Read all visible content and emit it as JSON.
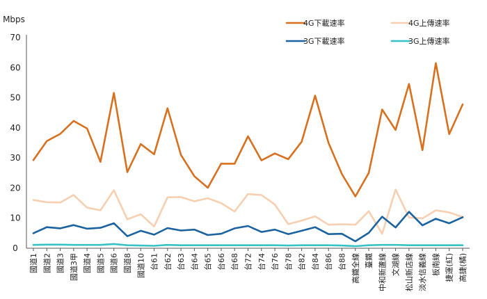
{
  "chart_data": {
    "type": "line",
    "ylabel": "Mbps",
    "ylim": [
      0,
      70
    ],
    "yticks": [
      0,
      10,
      20,
      30,
      40,
      50,
      60,
      70
    ],
    "grid": false,
    "legend_position": "top-right",
    "categories": [
      "國道1",
      "國道2",
      "國道3",
      "國道3甲",
      "國道4",
      "國道5",
      "國道6",
      "國道8",
      "國道10",
      "台61",
      "台62",
      "台63",
      "台64",
      "台65",
      "台66",
      "台68",
      "台72",
      "台74",
      "台76",
      "台78",
      "台82",
      "台84",
      "台86",
      "台88",
      "高鐵全線",
      "臺鐵",
      "中和新蘆線",
      "文湖線",
      "松山新店線",
      "淡水信義線",
      "板南線",
      "捷運(紅)",
      "高捷(橘)"
    ],
    "series": [
      {
        "name": "4G下載速率",
        "color": "#d9701f",
        "values": [
          29.3,
          35.6,
          38,
          42.3,
          39.8,
          28.7,
          51.6,
          25.3,
          34.6,
          31.2,
          46.5,
          31,
          23.9,
          20.1,
          28.1,
          28.1,
          37.2,
          29.2,
          31.5,
          29.6,
          35.4,
          50.7,
          35,
          24.6,
          17.2,
          25,
          46.1,
          39.3,
          54.6,
          32.6,
          61.5,
          37.9,
          47.8
        ]
      },
      {
        "name": "4G上傳速率",
        "color": "#f8cfb0",
        "values": [
          16,
          15.3,
          15.2,
          17.7,
          13.5,
          12.6,
          19.3,
          9.6,
          11.3,
          7.2,
          16.9,
          17,
          15.6,
          16.6,
          15,
          12.2,
          18,
          17.7,
          14.5,
          8,
          9.2,
          10.6,
          7.8,
          8,
          7.8,
          12.3,
          4.8,
          19.5,
          10.2,
          9.9,
          12.6,
          11.9,
          10.4
        ]
      },
      {
        "name": "3G下載速率",
        "color": "#1a63a0",
        "values": [
          5,
          7,
          6.6,
          7.7,
          6.5,
          6.8,
          8.3,
          4,
          5.8,
          4.5,
          6.7,
          5.9,
          6.2,
          4.4,
          4.8,
          6.6,
          7.4,
          5.4,
          6.2,
          4.7,
          5.8,
          7,
          4.7,
          4.8,
          2.3,
          5.1,
          10.5,
          6.9,
          12.1,
          7.6,
          9.8,
          8.3,
          10.3
        ]
      },
      {
        "name": "3G上傳速率",
        "color": "#37c2c6",
        "values": [
          1.1,
          1.2,
          1.2,
          1.1,
          1.1,
          1.1,
          1.4,
          1,
          0.9,
          0.8,
          1.1,
          1,
          1,
          1,
          1,
          1,
          1,
          1,
          1,
          0.9,
          1,
          1,
          1,
          0.9,
          0.7,
          1,
          1.1,
          1.1,
          1,
          1,
          1,
          1,
          1
        ]
      }
    ]
  }
}
